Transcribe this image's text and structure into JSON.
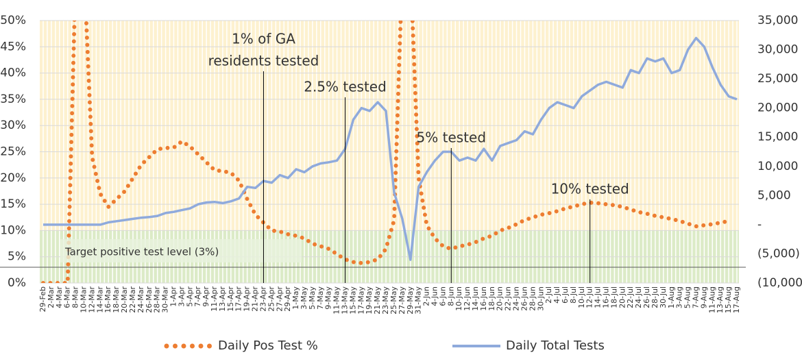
{
  "chart_data": {
    "type": "line",
    "categories": [
      "29-Feb",
      "2-Mar",
      "4-Mar",
      "6-Mar",
      "8-Mar",
      "10-Mar",
      "12-Mar",
      "14-Mar",
      "16-Mar",
      "18-Mar",
      "20-Mar",
      "22-Mar",
      "24-Mar",
      "26-Mar",
      "28-Mar",
      "30-Mar",
      "1-Apr",
      "3-Apr",
      "5-Apr",
      "7-Apr",
      "9-Apr",
      "11-Apr",
      "13-Apr",
      "15-Apr",
      "17-Apr",
      "19-Apr",
      "21-Apr",
      "23-Apr",
      "25-Apr",
      "27-Apr",
      "29-Apr",
      "1-May",
      "3-May",
      "5-May",
      "7-May",
      "9-May",
      "11-May",
      "13-May",
      "15-May",
      "17-May",
      "19-May",
      "21-May",
      "23-May",
      "25-May",
      "27-May",
      "29-May",
      "31-May",
      "2-Jun",
      "4-Jun",
      "6-Jun",
      "8-Jun",
      "10-Jun",
      "12-Jun",
      "14-Jun",
      "16-Jun",
      "18-Jun",
      "20-Jun",
      "22-Jun",
      "24-Jun",
      "26-Jun",
      "28-Jun",
      "30-Jun",
      "2-Jul",
      "4-Jul",
      "6-Jul",
      "8-Jul",
      "10-Jul",
      "12-Jul",
      "14-Jul",
      "16-Jul",
      "18-Jul",
      "20-Jul",
      "22-Jul",
      "24-Jul",
      "26-Jul",
      "28-Jul",
      "30-Jul",
      "1-Aug",
      "3-Aug",
      "5-Aug",
      "7-Aug",
      "9-Aug",
      "11-Aug",
      "13-Aug",
      "15-Aug",
      "17-Aug"
    ],
    "series": [
      {
        "name": "Daily Pos Test %",
        "color": "#ed7d31",
        "style": "dotted",
        "values": [
          0,
          0,
          0,
          0,
          60,
          60,
          24,
          17,
          14.5,
          16,
          17.5,
          20,
          22.5,
          24,
          25.5,
          25.7,
          25.8,
          27,
          26,
          24.5,
          23,
          21.5,
          21.3,
          21,
          19.5,
          16,
          13,
          11.5,
          10,
          9.8,
          9.3,
          9,
          8.5,
          7.5,
          7,
          6.5,
          5.5,
          4.5,
          4,
          3.8,
          4,
          4.5,
          6.5,
          12,
          60,
          60,
          20,
          11,
          8.5,
          7,
          6.5,
          7,
          7.3,
          7.8,
          8.5,
          9,
          10,
          10.5,
          11.2,
          12,
          12.5,
          13,
          13.3,
          13.7,
          14.2,
          14.6,
          15,
          15.3,
          15.2,
          15,
          14.8,
          14.5,
          14,
          13.5,
          13.2,
          12.8,
          12.5,
          12.2,
          11.8,
          11.3,
          10.8,
          11,
          11.2,
          11.5,
          11.8,
          null
        ]
      },
      {
        "name": "Daily Total Tests",
        "color": "#8faadc",
        "style": "solid",
        "axis": "y2",
        "values": [
          0,
          0,
          0,
          0,
          0,
          0,
          0,
          0,
          400,
          600,
          800,
          1000,
          1200,
          1300,
          1500,
          2000,
          2200,
          2500,
          2800,
          3500,
          3800,
          3900,
          3700,
          4000,
          4500,
          6500,
          6300,
          7500,
          7200,
          8500,
          8000,
          9500,
          9000,
          10000,
          10500,
          10700,
          11000,
          13000,
          18000,
          20000,
          19500,
          21000,
          19500,
          5500,
          1000,
          -6000,
          6500,
          9000,
          11000,
          12500,
          12500,
          11000,
          11500,
          11000,
          13000,
          11000,
          13500,
          14000,
          14500,
          16000,
          15500,
          18000,
          20000,
          21000,
          20500,
          20000,
          22000,
          23000,
          24000,
          24500,
          24000,
          23500,
          26500,
          26000,
          28500,
          28000,
          28500,
          26000,
          26500,
          30000,
          32000,
          30500,
          27000,
          24000,
          22000,
          21500
        ]
      }
    ],
    "ylim": [
      0,
      50
    ],
    "yticks": [
      {
        "value": 0,
        "label": "0%"
      },
      {
        "value": 5,
        "label": "5%"
      },
      {
        "value": 10,
        "label": "10%"
      },
      {
        "value": 15,
        "label": "15%"
      },
      {
        "value": 20,
        "label": "20%"
      },
      {
        "value": 25,
        "label": "25%"
      },
      {
        "value": 30,
        "label": "30%"
      },
      {
        "value": 35,
        "label": "35%"
      },
      {
        "value": 40,
        "label": "40%"
      },
      {
        "value": 45,
        "label": "45%"
      },
      {
        "value": 50,
        "label": "50%"
      }
    ],
    "y2lim": [
      -10000,
      35000
    ],
    "y2ticks": [
      {
        "value": -10000,
        "label": "(10,000)"
      },
      {
        "value": -5000,
        "label": "(5,000)"
      },
      {
        "value": 0,
        "label": "-"
      },
      {
        "value": 5000,
        "label": "5,000"
      },
      {
        "value": 10000,
        "label": "10,000"
      },
      {
        "value": 15000,
        "label": "15,000"
      },
      {
        "value": 20000,
        "label": "20,000"
      },
      {
        "value": 25000,
        "label": "25,000"
      },
      {
        "value": 30000,
        "label": "30,000"
      },
      {
        "value": 35000,
        "label": "35,000"
      }
    ],
    "grid": true,
    "legend": "bottom",
    "target": {
      "label": "Target positive test level (3%)",
      "value": 3,
      "band": [
        0,
        10
      ]
    },
    "annotations": [
      {
        "lines": [
          "1% of GA",
          "residents tested"
        ],
        "x": "23-Apr"
      },
      {
        "lines": [
          "2.5% tested"
        ],
        "x": "13-May"
      },
      {
        "lines": [
          "5% tested"
        ],
        "x": "8-Jun"
      },
      {
        "lines": [
          "10% tested"
        ],
        "x": "12-Jul"
      }
    ]
  }
}
